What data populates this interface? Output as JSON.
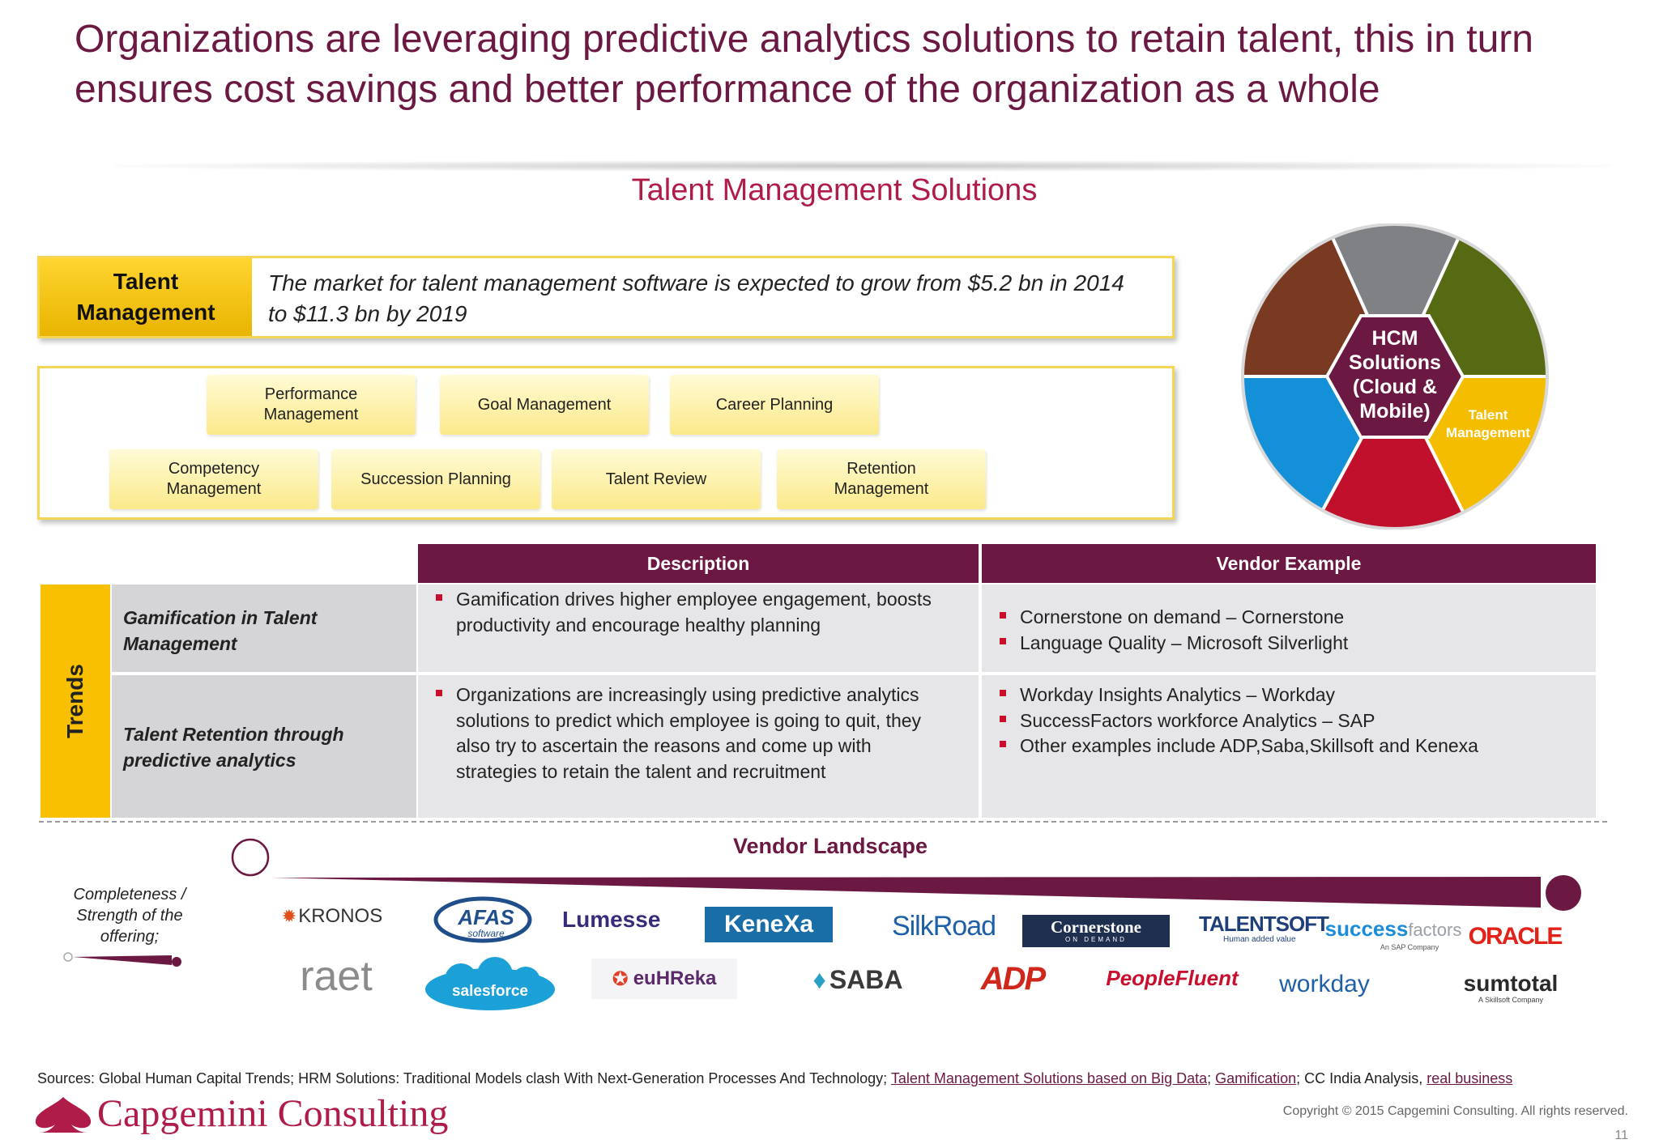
{
  "title_line1": "Organizations are leveraging predictive analytics solutions to retain talent, this in turn",
  "title_line2": "ensures cost savings and better performance of the organization as a whole",
  "subtitle": "Talent Management Solutions",
  "talent_management": {
    "label_line1": "Talent",
    "label_line2": "Management",
    "text_line1": "The market for talent management software is expected to grow from $5.2 bn in 2014",
    "text_line2": "to $11.3 bn by 2019"
  },
  "solutions": {
    "row1": [
      {
        "line1": "Performance",
        "line2": "Management"
      },
      {
        "line1": "Goal Management",
        "line2": ""
      },
      {
        "line1": "Career Planning",
        "line2": ""
      }
    ],
    "row2": [
      {
        "line1": "Competency",
        "line2": "Management"
      },
      {
        "line1": "Succession Planning",
        "line2": ""
      },
      {
        "line1": "Talent Review",
        "line2": ""
      },
      {
        "line1": "Retention",
        "line2": "Management"
      }
    ]
  },
  "wheel": {
    "center_lines": [
      "HCM",
      "Solutions",
      "(Cloud &",
      "Mobile)"
    ],
    "segment_label_line1": "Talent",
    "segment_label_line2": "Management",
    "colors": {
      "top": "#7f8184",
      "top_right": "#566a14",
      "bottom_right": "#f5bd00",
      "bottom": "#c0102c",
      "bottom_left": "#1490d8",
      "top_left": "#7a3a22",
      "center": "#6b1942"
    }
  },
  "trends_table": {
    "side_label": "Trends",
    "headers": {
      "description": "Description",
      "vendor": "Vendor Example"
    },
    "rows": [
      {
        "name_line1": "Gamification in Talent",
        "name_line2": "Management",
        "description": [
          {
            "line1": "Gamification drives higher employee engagement, boosts",
            "line2": "productivity and encourage healthy planning",
            "line3": "",
            "line4": ""
          }
        ],
        "vendors": [
          "Cornerstone on demand – Cornerstone",
          "Language Quality – Microsoft Silverlight"
        ]
      },
      {
        "name_line1": "Talent Retention through",
        "name_line2": "predictive analytics",
        "description": [
          {
            "line1": "Organizations are increasingly using predictive analytics",
            "line2": "solutions to predict which employee is going to quit, they",
            "line3": "also try to ascertain the reasons and come up with",
            "line4": "strategies to retain the talent and recruitment"
          }
        ],
        "vendors": [
          "Workday Insights Analytics – Workday",
          "SuccessFactors workforce Analytics – SAP",
          "Other examples include ADP,Saba,Skillsoft and Kenexa"
        ]
      }
    ]
  },
  "vendor_landscape": {
    "title": "Vendor Landscape",
    "axis_label_line1": "Completeness /",
    "axis_label_line2": "Strength of the",
    "axis_label_line3": "offering;",
    "logos_row1": [
      "KRONOS",
      "AFAS",
      "software",
      "Lumesse",
      "KeneXa",
      "SilkRoad",
      "Cornerstone",
      "ON DEMAND",
      "TALENTSOFT",
      "Human added value",
      "success",
      "factors",
      "An SAP Company",
      "ORACLE"
    ],
    "logos_row2": [
      "raet",
      "salesforce",
      "euHReka",
      "SABA",
      "ADP",
      "PeopleFluent",
      "workday",
      "sumtotal",
      "A Skillsoft Company"
    ]
  },
  "footer": {
    "sources_prefix": "Sources: Global Human Capital Trends; HRM Solutions: Traditional Models clash With Next-Generation Processes And Technology; ",
    "link1": "Talent Management Solutions based on Big Data",
    "sep1": "; ",
    "link2": "Gamification",
    "sep2": "; CC India Analysis, ",
    "link3": "real business",
    "company": "Capgemini Consulting",
    "copyright": "Copyright © 2015 Capgemini Consulting. All rights reserved.",
    "page": "11"
  },
  "colors": {
    "accent": "#6b1942",
    "title_red": "#b01c48",
    "yellow": "#f8c000",
    "bullet_red": "#c8102e"
  }
}
